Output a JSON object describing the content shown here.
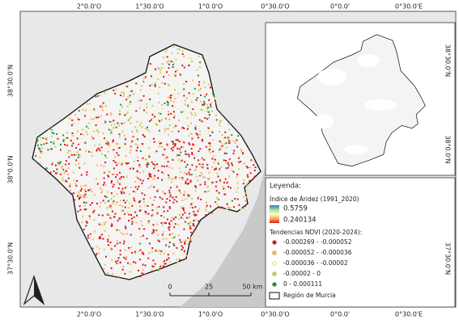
{
  "axes": {
    "top": [
      "2°0.0'O",
      "1°30.0'O",
      "1°0.0'O",
      "0°30.0'O",
      "0°0.0'",
      "0°30.0'E"
    ],
    "bottom": [
      "2°0.0'O",
      "1°30.0'O",
      "1°0.0'O",
      "0°30.0'O",
      "0°0.0'",
      "0°30.0'E"
    ],
    "left": [
      "38°30.0'N",
      "38°0.0'N",
      "37°30.0'N"
    ],
    "right": [
      "38°30.0'N",
      "38°0.0'N",
      "37°30.0'N"
    ]
  },
  "legend": {
    "title": "Leyenda:",
    "aridity": {
      "title": "Índice de Áridez (1991_2020)",
      "max": "0.5759",
      "min": "0.240134"
    },
    "ndvi": {
      "title": "Tendencias NDVI (2020-2024):",
      "classes": [
        {
          "label": "-0.000269 - -0.000052",
          "color": "#d7191c"
        },
        {
          "label": "-0.000052 - -0.000036",
          "color": "#fdae61"
        },
        {
          "label": "-0.000036 - -0.00002",
          "color": "#ffffbf"
        },
        {
          "label": "-0.00002 - 0",
          "color": "#c4d44e"
        },
        {
          "label": "0 - 0.000111",
          "color": "#1a9641"
        }
      ]
    },
    "region": "Región de Murcia"
  },
  "scale": [
    "0",
    "25",
    "50 km"
  ]
}
